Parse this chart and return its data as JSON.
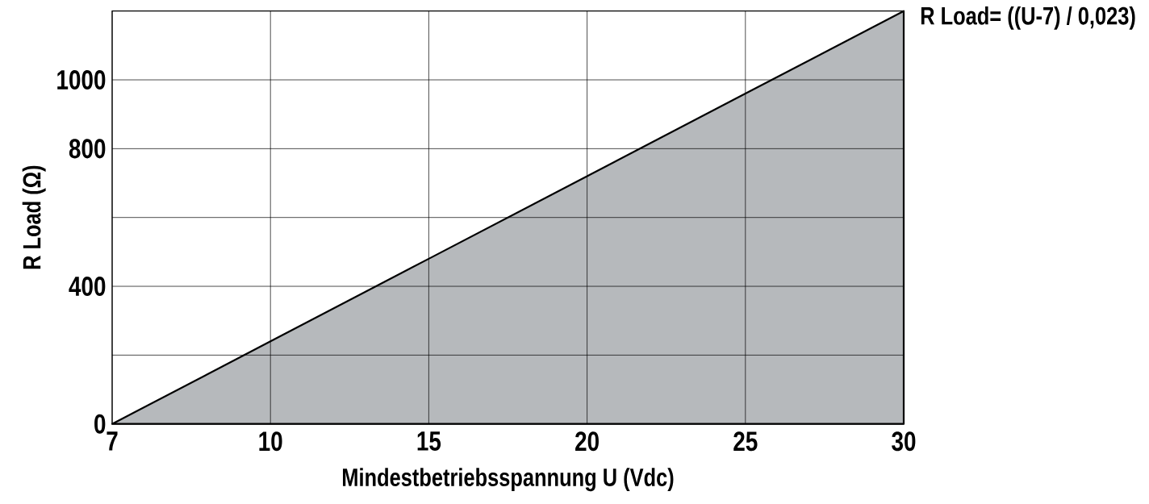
{
  "chart_data": {
    "type": "area",
    "xlabel": "Mindestbetriebsspannung U (Vdc)",
    "ylabel": "R Load (Ω)",
    "annotations": [
      "R Load= ((U-7) / 0,023)"
    ],
    "categories": [
      "7",
      "10",
      "15",
      "20",
      "25",
      "30"
    ],
    "series": [
      {
        "color": "#b6b9bc",
        "values": [
          0,
          240,
          480,
          720,
          960,
          1200
        ]
      }
    ],
    "ylim": [
      0,
      1200
    ],
    "yticks": [
      0,
      {
        "value": 200,
        "label": null
      },
      400,
      {
        "value": 600,
        "label": null
      },
      800,
      1000
    ],
    "grid": true
  }
}
